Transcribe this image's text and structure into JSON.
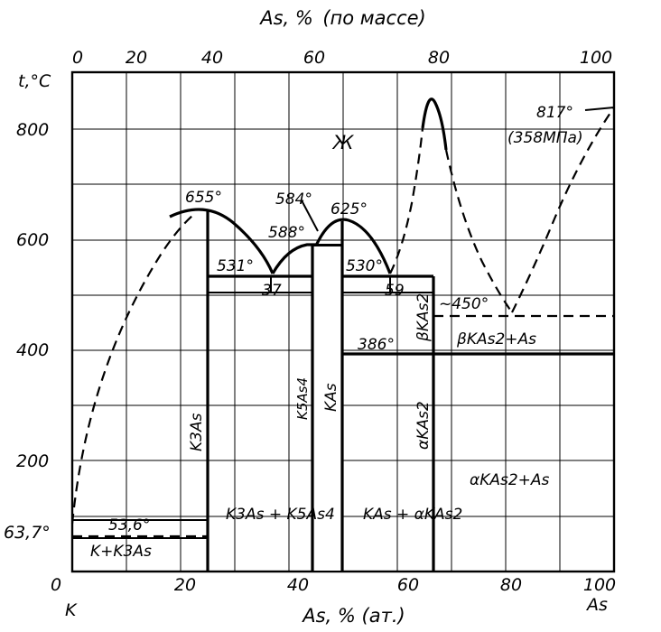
{
  "top_axis": {
    "title": "As, % (по массе)",
    "ticks": [
      "0",
      "20",
      "40",
      "60",
      "80",
      "100"
    ]
  },
  "bottom_axis": {
    "title": "As, % (ат.)",
    "ticks": [
      "0",
      "20",
      "40",
      "60",
      "80",
      "100"
    ],
    "left_end": "K",
    "right_end": "As"
  },
  "left_axis": {
    "title": "t,°C",
    "ticks": [
      "200",
      "400",
      "600",
      "800"
    ],
    "extra_tick": "63,7°"
  },
  "labels": {
    "liquid": "Ж",
    "t817": "817°",
    "pressure": "(358МПа)",
    "t655": "655°",
    "t584": "584°",
    "t588": "588°",
    "t625": "625°",
    "t531": "531°",
    "t530": "530°",
    "c37": "37",
    "c59": "59",
    "t450": "~450°",
    "t386": "386°",
    "t53_6": "53,6°",
    "k3as": "K3As",
    "k5as4": "K5As4",
    "kas": "KAs",
    "beta_kas2_vert": "βKAs2",
    "alpha_kas2_vert": "αKAs2",
    "beta_kas2_as": "βKAs2+As",
    "alpha_kas2_as": "αKAs2+As",
    "k_k3as": "K+K3As",
    "k3as_k5as4": "K3As + K5As4",
    "kas_alpha": "KAs + αKAs2"
  },
  "chart_data": {
    "type": "phase_diagram",
    "system": "K–As",
    "x_unit": "As, % (ат.)",
    "y_unit": "t, °C",
    "xlim": [
      0,
      100
    ],
    "ylim": [
      0,
      900
    ],
    "compounds": [
      {
        "name": "K3As",
        "x": 25,
        "melting_t": 655
      },
      {
        "name": "K5As4",
        "x": 44.4,
        "melting_t": 584
      },
      {
        "name": "KAs",
        "x": 50,
        "melting_t": 625
      },
      {
        "name": "KAs2",
        "x": 66.7,
        "polymorphic_t": 386
      }
    ],
    "invariants": [
      {
        "t": 63.7,
        "kind": "K melting"
      },
      {
        "t": 53.6,
        "kind": "eutectic K + K3As"
      },
      {
        "t": 531,
        "x": 37,
        "kind": "eutectic"
      },
      {
        "t": 588,
        "kind": "peritectic"
      },
      {
        "t": 530,
        "x": 59,
        "kind": "eutectic"
      },
      {
        "t": 450,
        "kind": "eutectic βKAs2 + As"
      },
      {
        "t": 386,
        "kind": "βKAs2 → αKAs2"
      },
      {
        "t": 817,
        "kind": "As melting",
        "pressure": "358 МПа"
      }
    ]
  }
}
